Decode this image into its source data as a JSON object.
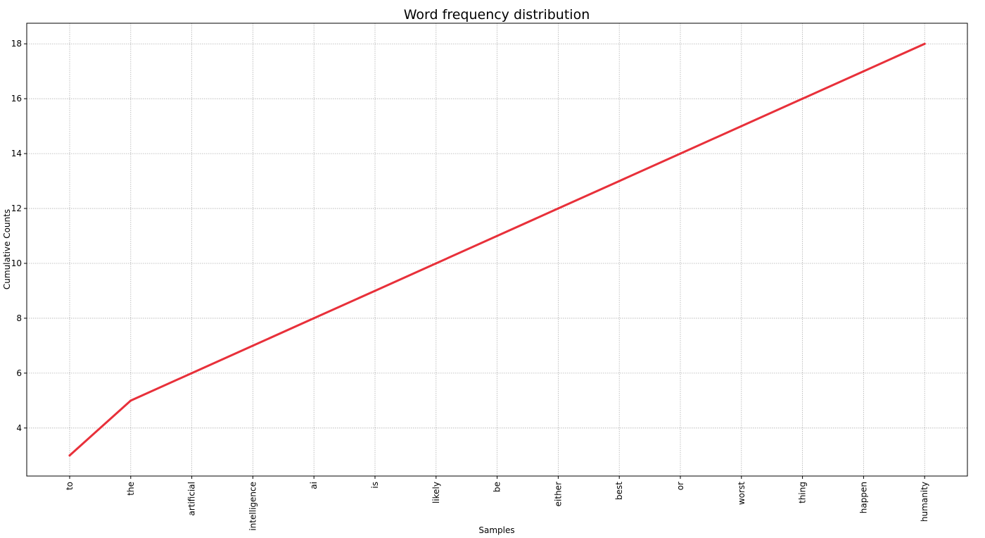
{
  "chart_data": {
    "type": "line",
    "title": "Word frequency distribution",
    "xlabel": "Samples",
    "ylabel": "Cumulative Counts",
    "categories": [
      "to",
      "the",
      "artificial",
      "intelligence",
      "ai",
      "is",
      "likely",
      "be",
      "either",
      "best",
      "or",
      "worst",
      "thing",
      "happen",
      "humanity"
    ],
    "values": [
      3,
      5,
      6,
      7,
      8,
      9,
      10,
      11,
      12,
      13,
      14,
      15,
      16,
      17,
      18
    ],
    "yticks": [
      "4",
      "6",
      "8",
      "10",
      "12",
      "14",
      "16",
      "18"
    ],
    "ylim": [
      2.25,
      18.75
    ],
    "grid": true,
    "line_color": "#e8303a"
  }
}
